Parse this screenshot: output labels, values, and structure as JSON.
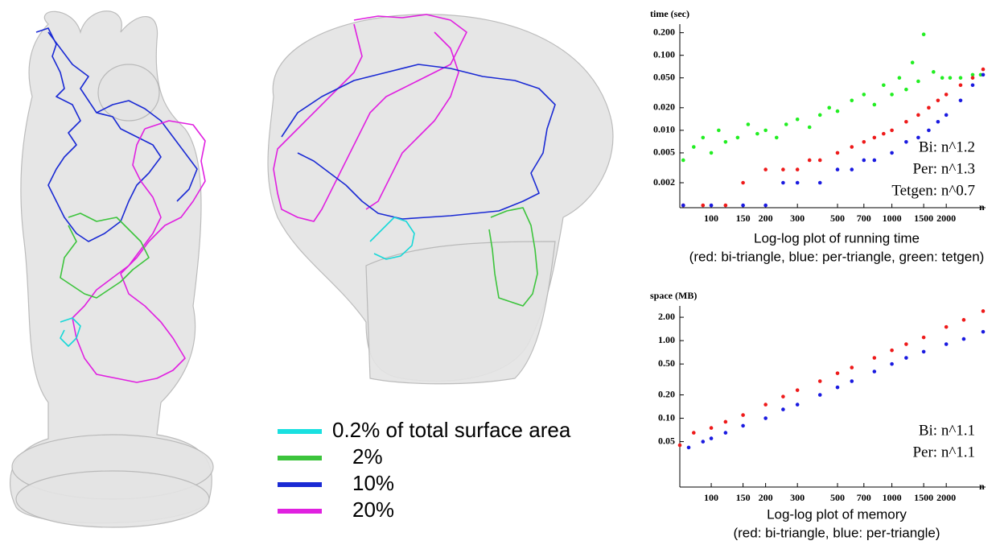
{
  "legend": {
    "items": [
      {
        "label": "0.2% of total surface area",
        "color": "#19e0e0"
      },
      {
        "label": "2%",
        "color": "#3cc43c"
      },
      {
        "label": "10%",
        "color": "#1a2ad4"
      },
      {
        "label": "20%",
        "color": "#e020e0"
      }
    ]
  },
  "chart_data": [
    {
      "type": "scatter",
      "y_label": "time (sec)",
      "x_label": "n",
      "log_x": true,
      "log_y": true,
      "xlim": [
        67,
        3300
      ],
      "ylim": [
        0.00093,
        0.26
      ],
      "xticks": [
        100,
        150,
        200,
        300,
        500,
        700,
        1000,
        1500,
        2000
      ],
      "yticks": [
        {
          "value": 0.2,
          "label": "0.200"
        },
        {
          "value": 0.1,
          "label": "0.100"
        },
        {
          "value": 0.05,
          "label": "0.050"
        },
        {
          "value": 0.02,
          "label": "0.020"
        },
        {
          "value": 0.01,
          "label": "0.010"
        },
        {
          "value": 0.005,
          "label": "0.005"
        },
        {
          "value": 0.002,
          "label": "0.002"
        }
      ],
      "annotations": [
        "Bi: n^1.2",
        "Per: n^1.3",
        "Tetgen: n^0.7"
      ],
      "caption": [
        "Log-log plot of running time",
        "(red: bi-triangle, blue: per-triangle, green: tetgen)"
      ],
      "series": [
        {
          "color": "#22ee22",
          "x": [
            70,
            80,
            90,
            100,
            110,
            120,
            140,
            160,
            180,
            200,
            230,
            260,
            300,
            350,
            400,
            450,
            500,
            600,
            700,
            800,
            900,
            1000,
            1100,
            1200,
            1300,
            1400,
            1500,
            1700,
            1900,
            2100,
            2400,
            2800,
            3100
          ],
          "values": [
            0.004,
            0.006,
            0.008,
            0.005,
            0.01,
            0.007,
            0.008,
            0.012,
            0.009,
            0.01,
            0.008,
            0.012,
            0.014,
            0.011,
            0.016,
            0.02,
            0.018,
            0.025,
            0.03,
            0.022,
            0.04,
            0.03,
            0.05,
            0.035,
            0.08,
            0.045,
            0.19,
            0.06,
            0.05,
            0.05,
            0.05,
            0.055,
            0.055
          ]
        },
        {
          "color": "#ee1a1a",
          "x": [
            70,
            90,
            120,
            150,
            200,
            250,
            300,
            350,
            400,
            500,
            600,
            700,
            800,
            900,
            1000,
            1200,
            1400,
            1600,
            1800,
            2000,
            2400,
            2800,
            3200
          ],
          "values": [
            0.001,
            0.001,
            0.001,
            0.002,
            0.003,
            0.003,
            0.003,
            0.004,
            0.004,
            0.005,
            0.006,
            0.007,
            0.008,
            0.009,
            0.01,
            0.013,
            0.016,
            0.02,
            0.025,
            0.03,
            0.04,
            0.05,
            0.065
          ]
        },
        {
          "color": "#1a1ae0",
          "x": [
            70,
            100,
            150,
            200,
            250,
            300,
            400,
            500,
            600,
            700,
            800,
            1000,
            1200,
            1400,
            1600,
            1800,
            2000,
            2400,
            2800,
            3200
          ],
          "values": [
            0.001,
            0.001,
            0.001,
            0.001,
            0.002,
            0.002,
            0.002,
            0.003,
            0.003,
            0.004,
            0.004,
            0.005,
            0.007,
            0.008,
            0.01,
            0.013,
            0.016,
            0.025,
            0.04,
            0.055
          ]
        }
      ]
    },
    {
      "type": "scatter",
      "y_label": "space (MB)",
      "x_label": "n",
      "log_x": true,
      "log_y": true,
      "xlim": [
        67,
        3300
      ],
      "ylim": [
        0.013,
        2.8
      ],
      "xticks": [
        100,
        150,
        200,
        300,
        500,
        700,
        1000,
        1500,
        2000
      ],
      "yticks": [
        {
          "value": 2,
          "label": "2.00"
        },
        {
          "value": 1,
          "label": "1.00"
        },
        {
          "value": 0.5,
          "label": "0.50"
        },
        {
          "value": 0.2,
          "label": "0.20"
        },
        {
          "value": 0.1,
          "label": "0.10"
        },
        0.05
      ],
      "annotations": [
        "Bi: n^1.1",
        "Per: n^1.1"
      ],
      "caption": [
        "Log-log plot of memory",
        "(red: bi-triangle, blue: per-triangle)"
      ],
      "series": [
        {
          "color": "#ee1a1a",
          "x": [
            67,
            80,
            100,
            120,
            150,
            200,
            250,
            300,
            400,
            500,
            600,
            800,
            1000,
            1200,
            1500,
            2000,
            2500,
            3200
          ],
          "values": [
            0.045,
            0.065,
            0.075,
            0.09,
            0.11,
            0.15,
            0.19,
            0.23,
            0.3,
            0.38,
            0.45,
            0.6,
            0.75,
            0.9,
            1.1,
            1.5,
            1.85,
            2.4
          ]
        },
        {
          "color": "#1a1ae0",
          "x": [
            75,
            90,
            100,
            120,
            150,
            200,
            250,
            300,
            400,
            500,
            600,
            800,
            1000,
            1200,
            1500,
            2000,
            2500,
            3200
          ],
          "values": [
            0.042,
            0.05,
            0.055,
            0.065,
            0.08,
            0.1,
            0.13,
            0.15,
            0.2,
            0.25,
            0.3,
            0.4,
            0.5,
            0.6,
            0.72,
            0.9,
            1.05,
            1.3
          ]
        }
      ]
    }
  ]
}
